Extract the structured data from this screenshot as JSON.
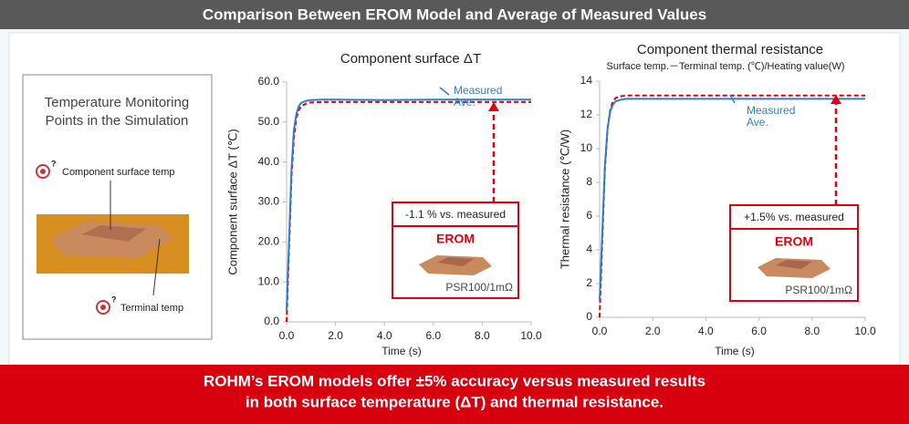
{
  "header": {
    "title": "Comparison Between EROM Model and Average of Measured Values"
  },
  "left_panel": {
    "title_lines": [
      "Temperature Monitoring",
      "Points in the Simulation"
    ],
    "surface_label": "Component surface temp",
    "terminal_label": "Terminal temp"
  },
  "chart_data": [
    {
      "type": "line",
      "title": "Component surface ΔT",
      "x_label": "Time (s)",
      "y_label": "Component surface ΔT (℃)",
      "x": [
        0,
        0.1,
        0.2,
        0.3,
        0.4,
        0.5,
        0.6,
        0.8,
        1.0,
        1.5,
        2,
        4,
        6,
        8,
        10
      ],
      "series": [
        {
          "name": "Measured Ave.",
          "color": "#2e7fc4",
          "dash": false,
          "values": [
            3,
            20,
            38,
            48,
            52,
            54,
            54.8,
            55.3,
            55.5,
            55.6,
            55.6,
            55.5,
            55.6,
            55.6,
            55.6
          ]
        },
        {
          "name": "EROM",
          "color": "#e0000f",
          "dash": true,
          "values": [
            0,
            18,
            36,
            46,
            51,
            53,
            54,
            54.6,
            54.9,
            55,
            55,
            55,
            55,
            55,
            55
          ]
        }
      ],
      "xlim": [
        0,
        10
      ],
      "xticks": [
        {
          "value": 0,
          "label": "0.0"
        },
        {
          "value": 2,
          "label": "2.0"
        },
        {
          "value": 4,
          "label": "4.0"
        },
        {
          "value": 6,
          "label": "6.0"
        },
        {
          "value": 8,
          "label": "8.0"
        },
        {
          "value": 10,
          "label": "10.0"
        }
      ],
      "ylim": [
        0,
        60
      ],
      "yticks": [
        {
          "value": 0,
          "label": "0.0"
        },
        {
          "value": 10,
          "label": "10.0"
        },
        {
          "value": 20,
          "label": "20.0"
        },
        {
          "value": 30,
          "label": "30.0"
        },
        {
          "value": 40,
          "label": "40.0"
        },
        {
          "value": 50,
          "label": "50.0"
        },
        {
          "value": 60,
          "label": "60.0"
        }
      ],
      "annotation": "-1.1 % vs. measured",
      "part": "PSR100/1mΩ"
    },
    {
      "type": "line",
      "title": "Component thermal resistance",
      "subtitle": "Surface temp.－Terminal temp. (℃)/Heating value(W)",
      "x_label": "Time (s)",
      "y_label": "Thermal resistance (℃/W)",
      "x": [
        0,
        0.1,
        0.2,
        0.3,
        0.4,
        0.5,
        0.6,
        0.8,
        1.0,
        1.5,
        2,
        4,
        6,
        8,
        10
      ],
      "series": [
        {
          "name": "Measured Ave.",
          "color": "#2e7fc4",
          "dash": false,
          "values": [
            1,
            5,
            9,
            11.2,
            12.2,
            12.6,
            12.8,
            12.9,
            12.95,
            12.95,
            12.95,
            12.95,
            12.95,
            12.95,
            12.95
          ]
        },
        {
          "name": "EROM",
          "color": "#e0000f",
          "dash": true,
          "values": [
            0,
            4.5,
            8.8,
            11.2,
            12.3,
            12.8,
            13.0,
            13.1,
            13.15,
            13.15,
            13.15,
            13.15,
            13.15,
            13.15,
            13.15
          ]
        }
      ],
      "xlim": [
        0,
        10
      ],
      "xticks": [
        {
          "value": 0,
          "label": "0.0"
        },
        {
          "value": 2,
          "label": "2.0"
        },
        {
          "value": 4,
          "label": "4.0"
        },
        {
          "value": 6,
          "label": "6.0"
        },
        {
          "value": 8,
          "label": "8.0"
        },
        {
          "value": 10,
          "label": "10.0"
        }
      ],
      "ylim": [
        0,
        14
      ],
      "yticks": [
        0,
        2,
        4,
        6,
        8,
        10,
        12,
        14
      ],
      "annotation": "+1.5% vs. measured",
      "part": "PSR100/1mΩ"
    }
  ],
  "footer": {
    "lines": [
      "ROHM’s EROM models offer ±5% accuracy versus measured results",
      "in both surface temperature (ΔT) and thermal resistance."
    ]
  }
}
